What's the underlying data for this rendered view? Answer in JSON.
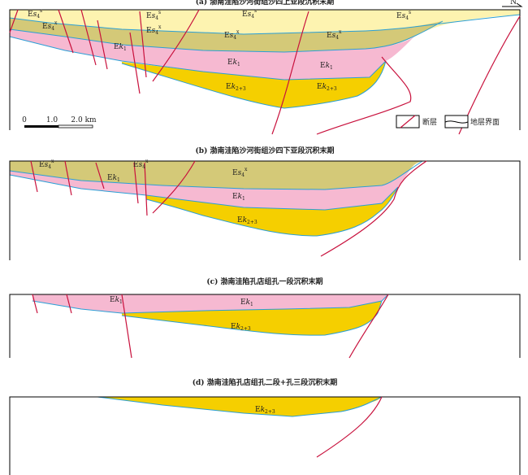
{
  "north": "N",
  "panels": [
    {
      "title": "(a) 渤南洼陷沙河街组沙四上亚段沉积末期",
      "labels": [
        {
          "base": "E",
          "var": "s",
          "sub": "4",
          "sup": "s"
        },
        {
          "base": "E",
          "var": "s",
          "sub": "4",
          "sup": "s"
        },
        {
          "base": "E",
          "var": "s",
          "sub": "4",
          "sup": "s"
        },
        {
          "base": "E",
          "var": "s",
          "sub": "4",
          "sup": "s"
        },
        {
          "base": "E",
          "var": "s",
          "sub": "4",
          "sup": "x"
        },
        {
          "base": "E",
          "var": "s",
          "sub": "4",
          "sup": "x"
        },
        {
          "base": "E",
          "var": "s",
          "sub": "4",
          "sup": "x"
        },
        {
          "base": "E",
          "var": "s",
          "sub": "4",
          "sup": "x"
        },
        {
          "base": "E",
          "var": "k",
          "sub": "1"
        },
        {
          "base": "E",
          "var": "k",
          "sub": "1"
        },
        {
          "base": "E",
          "var": "k",
          "sub": "1"
        },
        {
          "base": "E",
          "var": "k",
          "sub": "2+3"
        },
        {
          "base": "E",
          "var": "k",
          "sub": "2+3"
        }
      ]
    },
    {
      "title": "(b) 渤南洼陷沙河街组沙四下亚段沉积末期",
      "labels": [
        {
          "base": "E",
          "var": "s",
          "sub": "4",
          "sup": "x"
        },
        {
          "base": "E",
          "var": "s",
          "sub": "4",
          "sup": "x"
        },
        {
          "base": "E",
          "var": "s",
          "sub": "4",
          "sup": "x"
        },
        {
          "base": "E",
          "var": "k",
          "sub": "1"
        },
        {
          "base": "E",
          "var": "k",
          "sub": "1"
        },
        {
          "base": "E",
          "var": "k",
          "sub": "2+3"
        }
      ]
    },
    {
      "title": "(c) 渤南洼陷孔店组孔一段沉积末期",
      "labels": [
        {
          "base": "E",
          "var": "k",
          "sub": "1"
        },
        {
          "base": "E",
          "var": "k",
          "sub": "1"
        },
        {
          "base": "E",
          "var": "k",
          "sub": "2+3"
        }
      ]
    },
    {
      "title": "(d) 渤南洼陷孔店组孔二段+孔三段沉积末期",
      "labels": [
        {
          "base": "E",
          "var": "k",
          "sub": "2+3"
        }
      ]
    }
  ],
  "scale": {
    "labels": [
      "0",
      "1.0",
      "2.0 km"
    ]
  },
  "legend": {
    "fault": "断层",
    "boundary": "地层界面"
  }
}
